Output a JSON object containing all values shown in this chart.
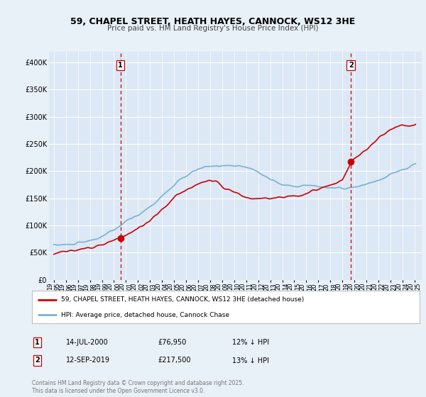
{
  "title": "59, CHAPEL STREET, HEATH HAYES, CANNOCK, WS12 3HE",
  "subtitle": "Price paid vs. HM Land Registry's House Price Index (HPI)",
  "ylim": [
    0,
    420000
  ],
  "yticks": [
    0,
    50000,
    100000,
    150000,
    200000,
    250000,
    300000,
    350000,
    400000
  ],
  "background_color": "#e8f0f8",
  "plot_bg_color": "#dce8f5",
  "grid_color": "#ffffff",
  "red_line_color": "#cc0000",
  "blue_line_color": "#7ab0d4",
  "marker1_year": 2000.54,
  "marker1_value": 76950,
  "marker2_year": 2019.71,
  "marker2_value": 217500,
  "legend_label_red": "59, CHAPEL STREET, HEATH HAYES, CANNOCK, WS12 3HE (detached house)",
  "legend_label_blue": "HPI: Average price, detached house, Cannock Chase",
  "annotation1_label": "1",
  "annotation1_date": "14-JUL-2000",
  "annotation1_price": "£76,950",
  "annotation1_hpi": "12% ↓ HPI",
  "annotation2_label": "2",
  "annotation2_date": "12-SEP-2019",
  "annotation2_price": "£217,500",
  "annotation2_hpi": "13% ↓ HPI",
  "footnote": "Contains HM Land Registry data © Crown copyright and database right 2025.\nThis data is licensed under the Open Government Licence v3.0."
}
